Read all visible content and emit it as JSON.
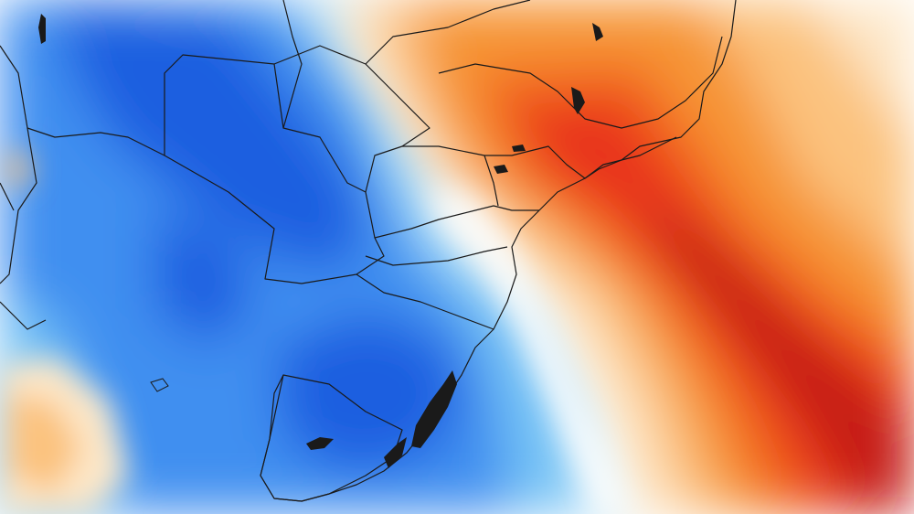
{
  "map": {
    "kind": "temperature-anomaly-field",
    "region": "southern-south-america",
    "palette": {
      "deep_blue": "#1a5fe0",
      "mid_blue": "#3f8ff0",
      "light_blue": "#74c3f5",
      "pale_blue": "#bfe8fb",
      "neutral": "#ffffff",
      "pale_orange": "#fde7c8",
      "light_orange": "#fbc27e",
      "orange": "#f69434",
      "red_orange": "#f2611f",
      "red": "#e8321c",
      "deep_red": "#c51b16"
    },
    "boundary_color": "#1a1a1a",
    "water_body_color": "#1a1a1a"
  }
}
